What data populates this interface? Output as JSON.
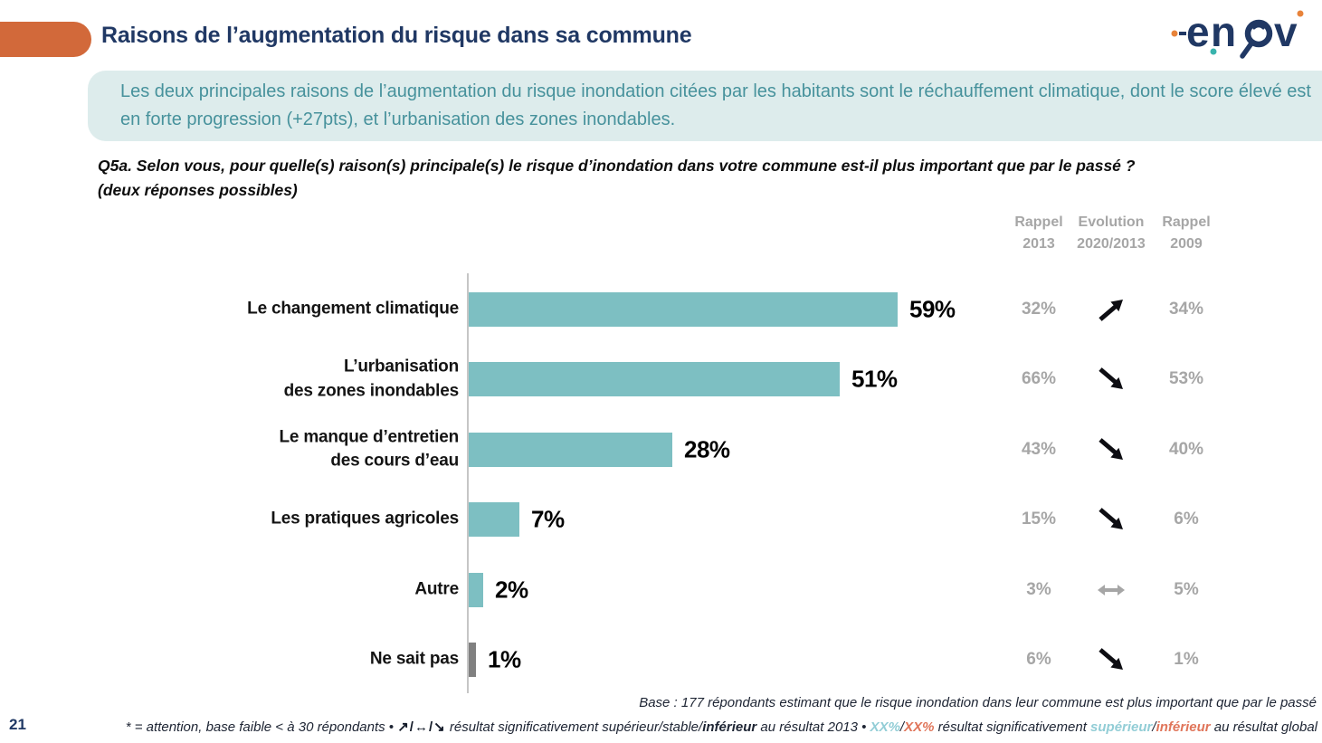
{
  "page_number": "21",
  "header": {
    "title": "Raisons de l’augmentation du risque dans sa commune",
    "logo": "enov",
    "logo_letters": [
      "e",
      "n",
      "v"
    ]
  },
  "colors": {
    "accent_orange": "#d2693a",
    "title_navy": "#203864",
    "bar_teal": "#7dbfc2",
    "bar_gray": "#808080",
    "muted_gray": "#a6a6a6",
    "summary_bg": "#ddecec",
    "summary_text": "#47929c",
    "footnote_teal": "#92cdd6",
    "footnote_salmon": "#e0755a"
  },
  "summary": "Les deux principales raisons de l’augmentation du risque inondation citées par les habitants sont le réchauffement climatique, dont le score élevé est en forte progression (+27pts), et l’urbanisation des zones inondables.",
  "question": {
    "line1": "Q5a. Selon vous, pour quelle(s) raison(s) principale(s) le risque d’inondation dans votre commune est-il plus important que par le passé ?",
    "line2": "(deux réponses possibles)"
  },
  "columns": [
    {
      "line1": "Rappel",
      "line2": "2013"
    },
    {
      "line1": "Evolution",
      "line2": "2020/2013"
    },
    {
      "line1": "Rappel",
      "line2": "2009"
    }
  ],
  "chart_data": {
    "type": "bar",
    "orientation": "horizontal",
    "unit": "%",
    "xlim": [
      0,
      62
    ],
    "grid": false,
    "categories": [
      "Le changement climatique",
      "L’urbanisation des zones inondables",
      "Le manque d’entretien des cours d’eau",
      "Les pratiques agricoles",
      "Autre",
      "Ne sait pas"
    ],
    "values": [
      59,
      51,
      28,
      7,
      2,
      1
    ],
    "rows": [
      {
        "label": "Le changement climatique",
        "value": 59,
        "value_label": "59%",
        "rappel_2013": "32%",
        "evolution": "up",
        "rappel_2009": "34%",
        "color": "#7dbfc2"
      },
      {
        "label": "L’urbanisation\ndes zones inondables",
        "value": 51,
        "value_label": "51%",
        "rappel_2013": "66%",
        "evolution": "down",
        "rappel_2009": "53%",
        "color": "#7dbfc2"
      },
      {
        "label": "Le manque d’entretien\ndes cours d’eau",
        "value": 28,
        "value_label": "28%",
        "rappel_2013": "43%",
        "evolution": "down",
        "rappel_2009": "40%",
        "color": "#7dbfc2"
      },
      {
        "label": "Les pratiques agricoles",
        "value": 7,
        "value_label": "7%",
        "rappel_2013": "15%",
        "evolution": "down",
        "rappel_2009": "6%",
        "color": "#7dbfc2"
      },
      {
        "label": "Autre",
        "value": 2,
        "value_label": "2%",
        "rappel_2013": "3%",
        "evolution": "stable",
        "rappel_2009": "5%",
        "color": "#7dbfc2"
      },
      {
        "label": "Ne sait pas",
        "value": 1,
        "value_label": "1%",
        "rappel_2013": "6%",
        "evolution": "down",
        "rappel_2009": "1%",
        "color": "#808080"
      }
    ]
  },
  "footer": {
    "base_text": "Base : 177 répondants estimant que le risque inondation dans leur commune est plus important que par le passé",
    "note_segments": [
      {
        "text": "* = attention, base faible < à 30 répondants • ",
        "style": "normal"
      },
      {
        "text": "↗/↔/↘",
        "style": "arrows"
      },
      {
        "text": " résultat significativement ",
        "style": "normal"
      },
      {
        "text": "supérieur",
        "style": "normal"
      },
      {
        "text": "/",
        "style": "normal"
      },
      {
        "text": "stable",
        "style": "normal"
      },
      {
        "text": "/",
        "style": "normal"
      },
      {
        "text": "inférieur",
        "style": "bold"
      },
      {
        "text": " au résultat 2013 • ",
        "style": "normal"
      },
      {
        "text": "XX%",
        "style": "teal"
      },
      {
        "text": "/",
        "style": "normal"
      },
      {
        "text": "XX%",
        "style": "salmon"
      },
      {
        "text": " résultat significativement ",
        "style": "normal"
      },
      {
        "text": "supérieur",
        "style": "teal"
      },
      {
        "text": "/",
        "style": "normal"
      },
      {
        "text": "inférieur",
        "style": "salmon"
      },
      {
        "text": " au résultat global",
        "style": "normal"
      }
    ]
  }
}
